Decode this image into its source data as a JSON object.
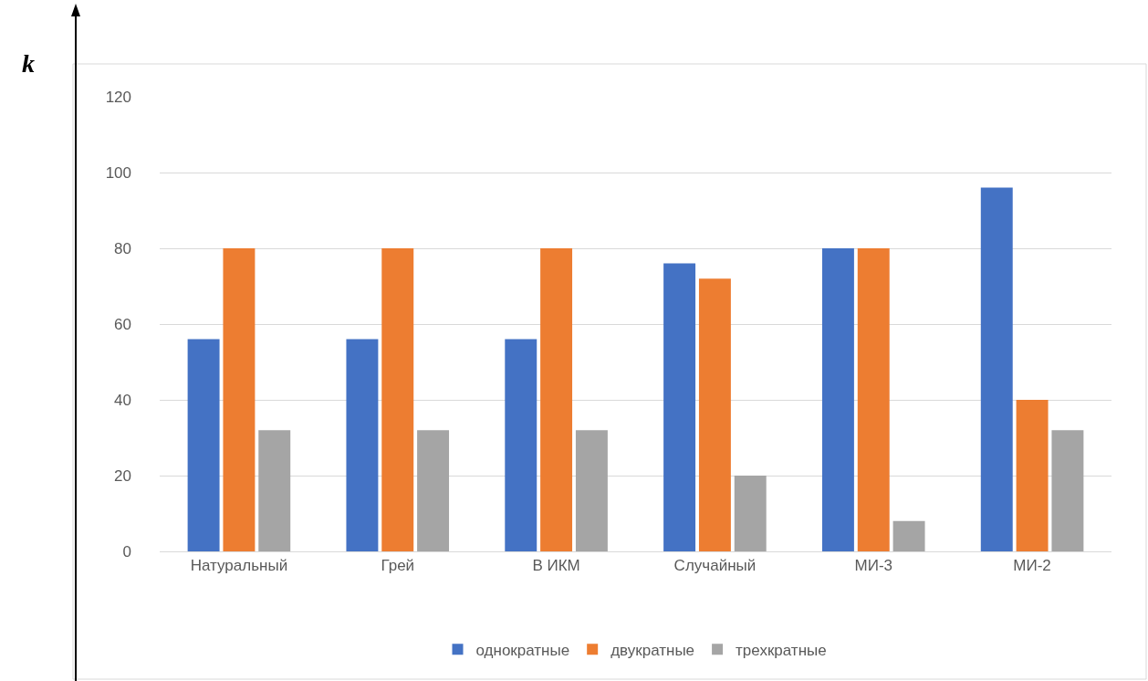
{
  "chart_data": {
    "type": "bar",
    "ylabel": "k",
    "categories": [
      "Натуральный",
      "Грей",
      "В ИКМ",
      "Случайный",
      "МИ-3",
      "МИ-2"
    ],
    "series": [
      {
        "name": "однократные",
        "color": "#4472c4",
        "values": [
          56,
          56,
          56,
          76,
          80,
          96
        ]
      },
      {
        "name": "двукратные",
        "color": "#ed7d31",
        "values": [
          80,
          80,
          80,
          72,
          80,
          40
        ]
      },
      {
        "name": "трехкратные",
        "color": "#a5a5a5",
        "values": [
          32,
          32,
          32,
          20,
          8,
          32
        ]
      }
    ],
    "ylim": [
      0,
      120
    ],
    "yticks": [
      0,
      20,
      40,
      60,
      80,
      100,
      120
    ],
    "grid": "y",
    "legend": "bottom"
  }
}
